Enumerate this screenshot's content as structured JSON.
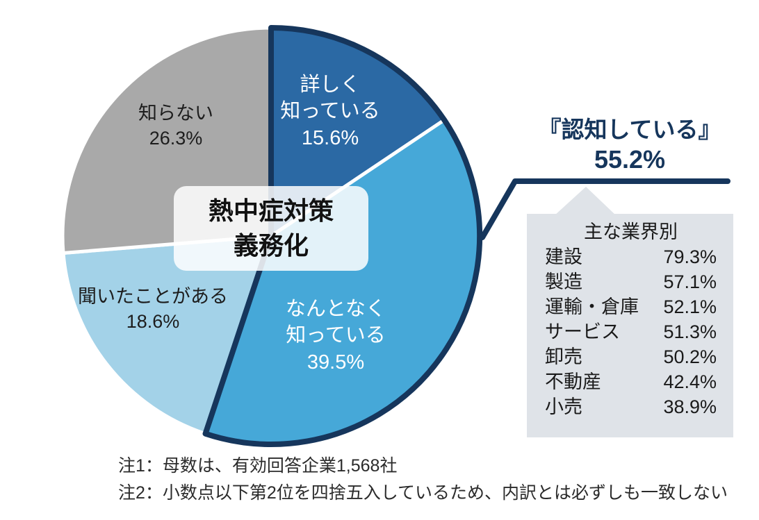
{
  "colors": {
    "navy": "#16365c",
    "dark_blue": "#2b69a4",
    "medium_blue": "#46a8d8",
    "light_blue": "#a3d2e8",
    "gray": "#a9a9a9",
    "panel_gray": "#dfe3e8"
  },
  "chart_data": {
    "type": "pie",
    "title": "熱中症対策義務化",
    "center_label_lines": [
      "熱中症対策",
      "義務化"
    ],
    "units": "%",
    "start_angle_deg": 0,
    "direction": "clockwise",
    "slices": [
      {
        "label": "詳しく知っている",
        "label_lines": [
          "詳しく",
          "知っている"
        ],
        "value": 15.6,
        "display": "15.6%",
        "color": "#2b69a4"
      },
      {
        "label": "なんとなく知っている",
        "label_lines": [
          "なんとなく",
          "知っている"
        ],
        "value": 39.5,
        "display": "39.5%",
        "color": "#46a8d8"
      },
      {
        "label": "聞いたことがある",
        "label_lines": [
          "聞いたことがある"
        ],
        "value": 18.6,
        "display": "18.6%",
        "color": "#a3d2e8"
      },
      {
        "label": "知らない",
        "label_lines": [
          "知らない"
        ],
        "value": 26.3,
        "display": "26.3%",
        "color": "#a9a9a9"
      }
    ],
    "group_annotation": {
      "label": "『認知している』",
      "value": 55.2,
      "display": "55.2%",
      "slice_indexes": [
        0,
        1
      ],
      "outline_color": "#16365c"
    }
  },
  "industry_panel": {
    "title": "主な業界別",
    "rows": [
      {
        "label": "建設",
        "value": "79.3%"
      },
      {
        "label": "製造",
        "value": "57.1%"
      },
      {
        "label": "運輸・倉庫",
        "value": "52.1%"
      },
      {
        "label": "サービス",
        "value": "51.3%"
      },
      {
        "label": "卸売",
        "value": "50.2%"
      },
      {
        "label": "不動産",
        "value": "42.4%"
      },
      {
        "label": "小売",
        "value": "38.9%"
      }
    ]
  },
  "notes": {
    "note1": "注1：母数は、有効回答企業1,568社",
    "note2": "注2：小数点以下第2位を四捨五入しているため、内訳とは必ずしも一致しない"
  }
}
